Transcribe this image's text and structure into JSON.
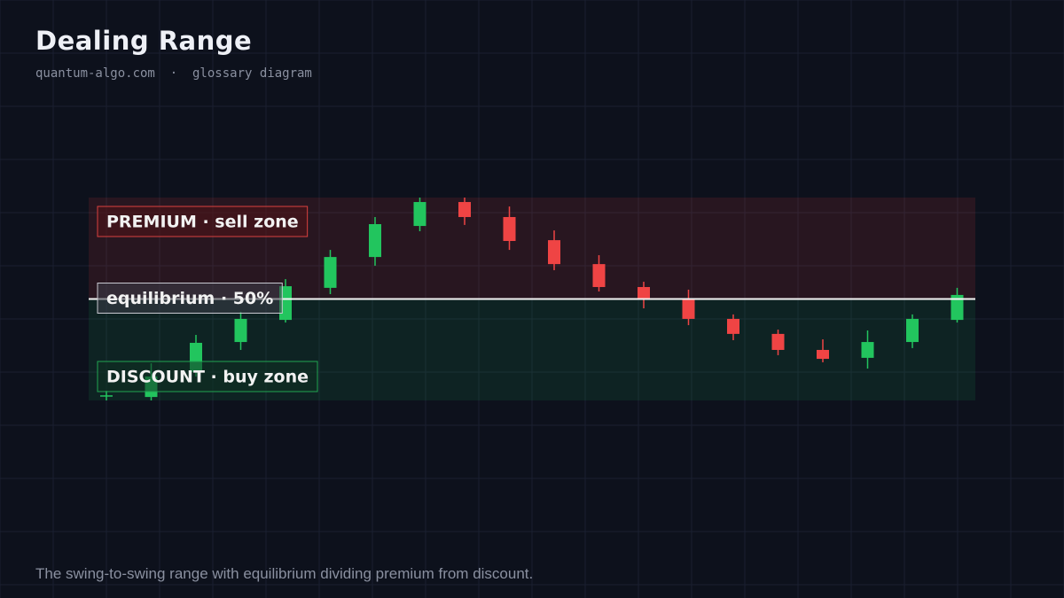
{
  "header": {
    "title": "Dealing Range",
    "subtitle": "quantum-algo.com  ·  glossary diagram"
  },
  "chart_data": {
    "type": "candlestick",
    "ylim": [
      0,
      100
    ],
    "equilibrium": 50,
    "premium_label": "PREMIUM · sell zone",
    "equilibrium_label": "equilibrium · 50%",
    "discount_label": "DISCOUNT · buy zone",
    "up_color": "#22c55e",
    "down_color": "#ef4444",
    "candles": [
      {
        "open": 2.2,
        "high": 4.8,
        "low": 0,
        "close": 2.2
      },
      {
        "open": 1.7,
        "high": 18.3,
        "low": 0,
        "close": 11.8
      },
      {
        "open": 14,
        "high": 32.3,
        "low": 11.8,
        "close": 28.4
      },
      {
        "open": 28.8,
        "high": 43.7,
        "low": 24.9,
        "close": 40.2
      },
      {
        "open": 39.7,
        "high": 59.8,
        "low": 38.4,
        "close": 56.3
      },
      {
        "open": 55.5,
        "high": 74.2,
        "low": 52.4,
        "close": 70.7
      },
      {
        "open": 70.7,
        "high": 90.4,
        "low": 66.4,
        "close": 86.9
      },
      {
        "open": 86,
        "high": 100,
        "low": 83.4,
        "close": 97.8
      },
      {
        "open": 97.8,
        "high": 100,
        "low": 86.5,
        "close": 90.4
      },
      {
        "open": 90.4,
        "high": 95.6,
        "low": 74.2,
        "close": 78.6
      },
      {
        "open": 79,
        "high": 83.8,
        "low": 64.2,
        "close": 67.2
      },
      {
        "open": 67.2,
        "high": 71.6,
        "low": 53.7,
        "close": 55.9
      },
      {
        "open": 55.9,
        "high": 58.5,
        "low": 45.4,
        "close": 50.2
      },
      {
        "open": 49.8,
        "high": 54.6,
        "low": 37.1,
        "close": 40.2
      },
      {
        "open": 40.2,
        "high": 42.4,
        "low": 29.7,
        "close": 32.8
      },
      {
        "open": 32.8,
        "high": 34.9,
        "low": 22.3,
        "close": 24.9
      },
      {
        "open": 24.9,
        "high": 30.1,
        "low": 18.8,
        "close": 20.5
      },
      {
        "open": 21,
        "high": 34.5,
        "low": 15.7,
        "close": 28.8
      },
      {
        "open": 28.8,
        "high": 42.4,
        "low": 25.8,
        "close": 40.2
      },
      {
        "open": 39.7,
        "high": 55.5,
        "low": 38.4,
        "close": 52
      }
    ]
  },
  "caption": "The swing-to-swing range with equilibrium dividing premium from discount."
}
